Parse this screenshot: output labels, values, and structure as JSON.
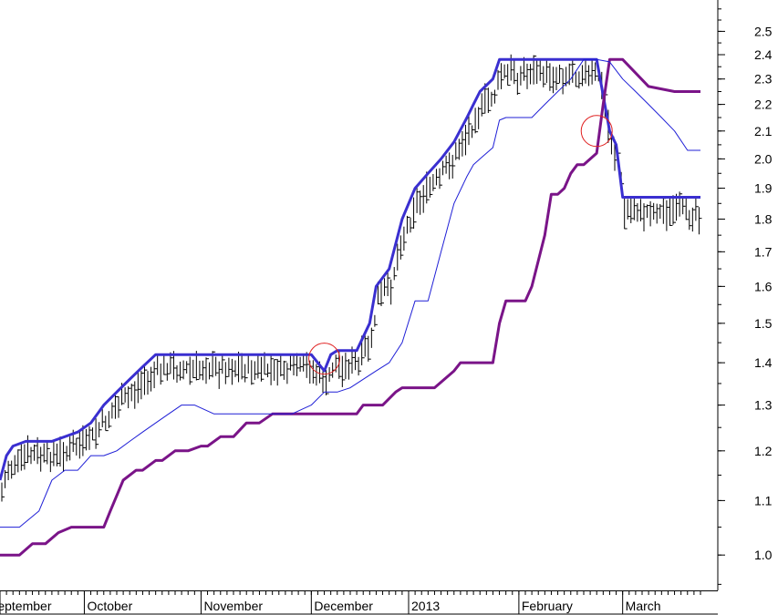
{
  "chart_data": {
    "type": "line",
    "title": "",
    "xlabel": "",
    "ylabel": "",
    "yscale": "log",
    "ylim": [
      0.94,
      2.62
    ],
    "xlim": [
      0,
      108
    ],
    "y_ticks": [
      1.0,
      1.1,
      1.2,
      1.3,
      1.4,
      1.5,
      1.6,
      1.7,
      1.8,
      1.9,
      2.0,
      2.1,
      2.2,
      2.3,
      2.4,
      2.5
    ],
    "x_tick_labels": [
      {
        "label": "September",
        "x": 0
      },
      {
        "label": "October",
        "x": 13
      },
      {
        "label": "November",
        "x": 31
      },
      {
        "label": "December",
        "x": 48
      },
      {
        "label": "2013",
        "x": 63
      },
      {
        "label": "February",
        "x": 80
      },
      {
        "label": "March",
        "x": 96
      }
    ],
    "colors": {
      "price": "#000000",
      "upper_band": "#3a2fd0",
      "middle_line": "#1f1fd6",
      "lower_band": "#7a1488",
      "marker": "#e02020"
    },
    "series": [
      {
        "style": "thick-blue",
        "x": [
          0,
          1,
          2,
          4,
          8,
          12,
          14,
          16,
          18,
          20,
          22,
          24,
          27,
          30,
          33,
          36,
          40,
          44,
          48,
          50,
          51,
          52,
          55,
          57,
          58,
          60,
          62,
          64,
          66,
          68,
          70,
          72,
          73,
          74,
          76,
          77,
          78,
          79,
          82,
          84,
          88,
          92,
          94,
          95,
          96,
          97,
          99,
          102,
          106,
          108
        ],
        "values": [
          1.14,
          1.19,
          1.21,
          1.22,
          1.22,
          1.24,
          1.26,
          1.3,
          1.33,
          1.36,
          1.39,
          1.42,
          1.42,
          1.42,
          1.42,
          1.42,
          1.42,
          1.42,
          1.42,
          1.38,
          1.42,
          1.43,
          1.43,
          1.5,
          1.6,
          1.65,
          1.8,
          1.9,
          1.95,
          2.0,
          2.06,
          2.15,
          2.2,
          2.25,
          2.3,
          2.38,
          2.38,
          2.38,
          2.38,
          2.38,
          2.38,
          2.38,
          2.1,
          2.05,
          1.87,
          1.87,
          1.87,
          1.87,
          1.87,
          1.87
        ]
      },
      {
        "style": "thick-purple",
        "x": [
          0,
          3,
          5,
          7,
          9,
          11,
          12,
          16,
          17,
          19,
          21,
          22,
          24,
          25,
          27,
          29,
          31,
          32,
          34,
          36,
          38,
          40,
          42,
          48,
          55,
          56,
          59,
          61,
          62,
          64,
          67,
          70,
          71,
          73,
          76,
          77,
          78,
          80,
          81,
          82,
          84,
          85,
          86,
          87,
          88,
          89,
          90,
          92,
          93,
          94,
          95,
          96,
          100,
          104,
          108
        ],
        "values": [
          1.0,
          1.0,
          1.02,
          1.02,
          1.04,
          1.05,
          1.05,
          1.05,
          1.08,
          1.14,
          1.16,
          1.16,
          1.18,
          1.18,
          1.2,
          1.2,
          1.21,
          1.21,
          1.23,
          1.23,
          1.26,
          1.26,
          1.28,
          1.28,
          1.28,
          1.3,
          1.3,
          1.33,
          1.34,
          1.34,
          1.34,
          1.38,
          1.4,
          1.4,
          1.4,
          1.5,
          1.56,
          1.56,
          1.56,
          1.6,
          1.75,
          1.88,
          1.88,
          1.9,
          1.95,
          1.98,
          1.98,
          2.02,
          2.2,
          2.38,
          2.38,
          2.38,
          2.27,
          2.25,
          2.25
        ]
      },
      {
        "style": "thin-blue",
        "x": [
          0,
          1,
          3,
          6,
          8,
          10,
          12,
          14,
          16,
          18,
          20,
          22,
          24,
          26,
          28,
          30,
          33,
          35,
          38,
          42,
          45,
          48,
          50,
          52,
          54,
          56,
          58,
          60,
          62,
          64,
          66,
          68,
          70,
          72,
          73,
          74,
          76,
          77,
          78,
          80,
          82,
          84,
          86,
          88,
          90,
          92,
          94,
          96,
          98,
          100,
          102,
          104,
          106,
          108
        ],
        "values": [
          1.05,
          1.05,
          1.05,
          1.08,
          1.14,
          1.16,
          1.16,
          1.19,
          1.19,
          1.2,
          1.22,
          1.24,
          1.26,
          1.28,
          1.3,
          1.3,
          1.28,
          1.28,
          1.28,
          1.28,
          1.28,
          1.3,
          1.33,
          1.33,
          1.34,
          1.36,
          1.38,
          1.4,
          1.45,
          1.56,
          1.56,
          1.7,
          1.85,
          1.94,
          1.98,
          2.0,
          2.04,
          2.14,
          2.15,
          2.15,
          2.15,
          2.2,
          2.25,
          2.3,
          2.38,
          2.38,
          2.37,
          2.3,
          2.25,
          2.2,
          2.15,
          2.1,
          2.03,
          2.03
        ]
      }
    ],
    "annotations": [
      {
        "type": "circle",
        "x": 50,
        "y": 1.41
      },
      {
        "type": "circle",
        "x": 92,
        "y": 2.1
      }
    ]
  }
}
